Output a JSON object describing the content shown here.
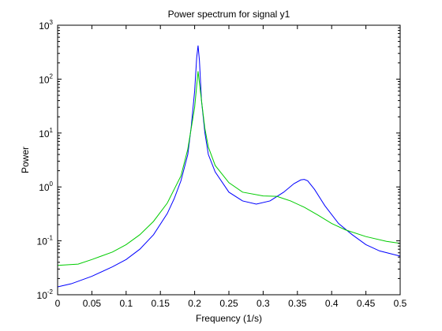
{
  "chart_data": {
    "type": "line",
    "title": "Power spectrum for signal y1",
    "xlabel": "Frequency (1/s)",
    "ylabel": "Power",
    "xlim": [
      0,
      0.5
    ],
    "ylim": [
      0.01,
      1000
    ],
    "yscale": "log",
    "grid": false,
    "x_ticks": [
      "0",
      "0.05",
      "0.1",
      "0.15",
      "0.2",
      "0.25",
      "0.3",
      "0.35",
      "0.4",
      "0.45",
      "0.5"
    ],
    "x_tick_values": [
      0,
      0.05,
      0.1,
      0.15,
      0.2,
      0.25,
      0.3,
      0.35,
      0.4,
      0.45,
      0.5
    ],
    "y_ticks": [
      {
        "base": "10",
        "exp": "-2",
        "value": 0.01
      },
      {
        "base": "10",
        "exp": "-1",
        "value": 0.1
      },
      {
        "base": "10",
        "exp": "0",
        "value": 1
      },
      {
        "base": "10",
        "exp": "1",
        "value": 10
      },
      {
        "base": "10",
        "exp": "2",
        "value": 100
      },
      {
        "base": "10",
        "exp": "3",
        "value": 1000
      }
    ],
    "series": [
      {
        "color": "#0000ff",
        "x": [
          0,
          0.02,
          0.05,
          0.08,
          0.1,
          0.12,
          0.14,
          0.16,
          0.17,
          0.18,
          0.19,
          0.195,
          0.2,
          0.203,
          0.205,
          0.207,
          0.21,
          0.215,
          0.22,
          0.23,
          0.25,
          0.27,
          0.29,
          0.31,
          0.33,
          0.345,
          0.355,
          0.36,
          0.365,
          0.375,
          0.39,
          0.41,
          0.43,
          0.45,
          0.47,
          0.5
        ],
        "y": [
          0.014,
          0.016,
          0.022,
          0.033,
          0.045,
          0.07,
          0.13,
          0.32,
          0.6,
          1.3,
          4,
          13,
          60,
          250,
          420,
          220,
          40,
          10,
          4,
          1.9,
          0.8,
          0.55,
          0.48,
          0.55,
          0.8,
          1.15,
          1.35,
          1.38,
          1.3,
          0.9,
          0.45,
          0.21,
          0.13,
          0.085,
          0.065,
          0.052
        ]
      },
      {
        "color": "#00cc00",
        "x": [
          0,
          0.03,
          0.05,
          0.08,
          0.1,
          0.12,
          0.14,
          0.16,
          0.18,
          0.19,
          0.2,
          0.205,
          0.21,
          0.215,
          0.22,
          0.23,
          0.25,
          0.27,
          0.3,
          0.32,
          0.34,
          0.36,
          0.38,
          0.4,
          0.42,
          0.45,
          0.48,
          0.5
        ],
        "y": [
          0.035,
          0.037,
          0.045,
          0.062,
          0.085,
          0.13,
          0.23,
          0.5,
          1.6,
          5,
          30,
          140,
          40,
          12,
          5.5,
          2.5,
          1.2,
          0.8,
          0.68,
          0.67,
          0.55,
          0.42,
          0.3,
          0.21,
          0.16,
          0.12,
          0.098,
          0.09
        ]
      }
    ]
  }
}
